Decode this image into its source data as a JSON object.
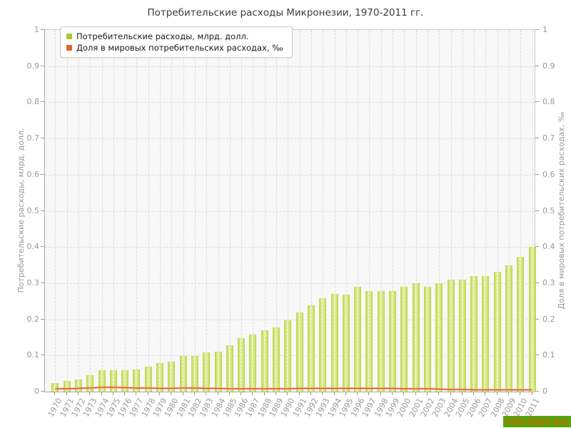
{
  "title": "Потребительские расходы Микронезии, 1970-2011 гг.",
  "legend": [
    {
      "label": "Потребительские расходы, млрд. долл.",
      "color": "#a8cc2b"
    },
    {
      "label": "Доля в мировых потребительских расходах, ‰",
      "color": "#e2632d"
    }
  ],
  "axes": {
    "left_label": "Потребительские расходы, млрд. долл.",
    "right_label": "Доля в мировых потребительских расходах, ‰",
    "y_ticks": [
      "0",
      "0.1",
      "0.2",
      "0.3",
      "0.4",
      "0.5",
      "0.6",
      "0.7",
      "0.8",
      "0.9",
      "1"
    ]
  },
  "watermark": "http://be5.biz/",
  "colors": {
    "bar_edge": "#bcd63f",
    "bar_center": "#dcec9a",
    "line": "#d9531e",
    "line_glow": "#f2a778",
    "grid": "#dddddd",
    "plot_bg": "#f8f8f8",
    "axis_text": "#999999",
    "watermark_bg": "#55a50a",
    "watermark_text": "#ff4d00"
  },
  "chart_data": {
    "type": "bar",
    "title": "Потребительские расходы Микронезии, 1970-2011 гг.",
    "categories": [
      1970,
      1971,
      1972,
      1973,
      1974,
      1975,
      1976,
      1977,
      1978,
      1979,
      1980,
      1981,
      1982,
      1983,
      1984,
      1985,
      1986,
      1987,
      1988,
      1989,
      1990,
      1991,
      1992,
      1993,
      1994,
      1995,
      1996,
      1997,
      1998,
      1999,
      2000,
      2001,
      2002,
      2003,
      2004,
      2005,
      2006,
      2007,
      2008,
      2009,
      2010,
      2011
    ],
    "series": [
      {
        "name": "Потребительские расходы, млрд. долл.",
        "type": "bar",
        "color": "#bcd63f",
        "values": [
          0.024,
          0.029,
          0.034,
          0.046,
          0.059,
          0.059,
          0.06,
          0.061,
          0.069,
          0.078,
          0.083,
          0.099,
          0.098,
          0.108,
          0.11,
          0.129,
          0.148,
          0.158,
          0.17,
          0.178,
          0.198,
          0.219,
          0.239,
          0.258,
          0.27,
          0.268,
          0.29,
          0.279,
          0.279,
          0.279,
          0.29,
          0.3,
          0.289,
          0.299,
          0.31,
          0.31,
          0.32,
          0.32,
          0.332,
          0.35,
          0.372,
          0.4
        ]
      },
      {
        "name": "Доля в мировых потребительских расходах, ‰",
        "type": "line",
        "color": "#d9531e",
        "values": [
          0.008,
          0.008,
          0.009,
          0.01,
          0.012,
          0.012,
          0.011,
          0.01,
          0.01,
          0.009,
          0.009,
          0.01,
          0.01,
          0.009,
          0.009,
          0.008,
          0.008,
          0.008,
          0.008,
          0.008,
          0.008,
          0.009,
          0.009,
          0.009,
          0.009,
          0.009,
          0.009,
          0.009,
          0.009,
          0.009,
          0.008,
          0.008,
          0.008,
          0.007,
          0.006,
          0.006,
          0.005,
          0.005,
          0.005,
          0.005,
          0.005,
          0.005
        ]
      }
    ],
    "ylim": [
      0,
      1
    ],
    "xlabel": "",
    "ylabel": "Потребительские расходы, млрд. долл.",
    "ylabel_right": "Доля в мировых потребительских расходах, ‰",
    "grid": true,
    "legend_position": "top-left"
  }
}
